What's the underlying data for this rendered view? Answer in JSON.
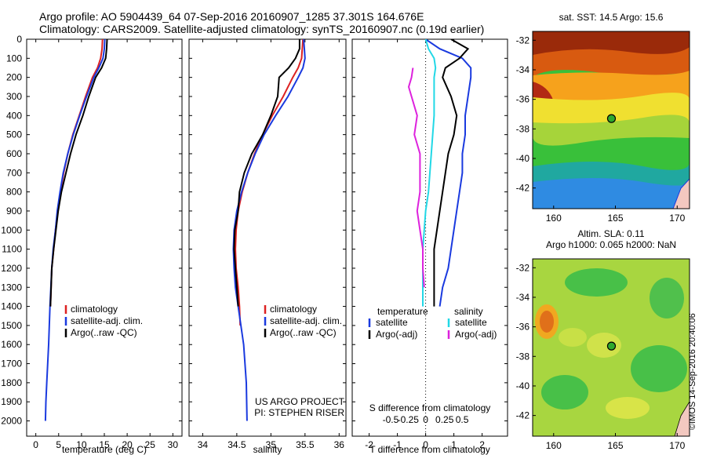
{
  "header": {
    "line1": "Argo profile: AO 5904439_64 07-Sep-2016 20160907_1285 37.301S 164.676E",
    "line2": "Climatology: CARS2009. Satellite-adjusted climatology: synTS_20160907.nc (0.19d earlier)"
  },
  "footer_note": "©IMOS 14-Sep-2016 20:40:06",
  "colors": {
    "climatology": "#dd2222",
    "satellite": "#1a3adf",
    "argo": "#000000",
    "salinity_satellite": "#22d8e6",
    "salinity_argo": "#dd22dd"
  },
  "chart_data": [
    {
      "type": "line",
      "name": "temperature-profile",
      "xlabel": "temperature (deg C)",
      "ylabel": "",
      "xlim": [
        -2,
        32
      ],
      "ylim": [
        0,
        2080
      ],
      "x_ticks": [
        0,
        5,
        10,
        15,
        20,
        25,
        30
      ],
      "y_ticks": [
        0,
        100,
        200,
        300,
        400,
        500,
        600,
        700,
        800,
        900,
        1000,
        1100,
        1200,
        1300,
        1400,
        1500,
        1600,
        1700,
        1800,
        1900,
        2000
      ],
      "legend": [
        "climatology",
        "satellite-adj. clim.",
        "Argo(..raw -QC)"
      ],
      "legend_position": "bottom-center",
      "series": [
        {
          "name": "climatology",
          "color": "#dd2222",
          "x": [
            14.6,
            14.5,
            14.2,
            13.5,
            12.4,
            10.9,
            9.5,
            8.1,
            7.0,
            6.1,
            5.4,
            4.8,
            4.3,
            3.9,
            3.5,
            3.2
          ],
          "y": [
            0,
            50,
            100,
            150,
            200,
            300,
            400,
            500,
            600,
            700,
            800,
            900,
            1000,
            1100,
            1200,
            1400
          ]
        },
        {
          "name": "satellite-adj. clim.",
          "color": "#1a3adf",
          "x": [
            15.1,
            15.0,
            14.7,
            13.8,
            12.7,
            11.1,
            9.6,
            8.2,
            7.0,
            6.0,
            5.3,
            4.7,
            4.3,
            3.8,
            3.5,
            3.1,
            2.8,
            2.6,
            2.4,
            2.2,
            2.1
          ],
          "y": [
            0,
            50,
            100,
            150,
            200,
            300,
            400,
            500,
            600,
            700,
            800,
            900,
            1000,
            1100,
            1200,
            1400,
            1600,
            1700,
            1800,
            1900,
            2000
          ]
        },
        {
          "name": "Argo(..raw -QC)",
          "color": "#000000",
          "x": [
            15.6,
            15.5,
            15.3,
            14.4,
            13.1,
            11.6,
            10.3,
            8.8,
            7.6,
            6.6,
            5.6,
            4.9,
            4.4,
            3.9,
            3.5,
            3.2
          ],
          "y": [
            0,
            50,
            100,
            150,
            200,
            300,
            400,
            500,
            600,
            700,
            800,
            900,
            1000,
            1100,
            1200,
            1400
          ]
        }
      ]
    },
    {
      "type": "line",
      "name": "salinity-profile",
      "xlabel": "salinity",
      "ylabel": "",
      "xlim": [
        33.8,
        36.1
      ],
      "ylim": [
        0,
        2080
      ],
      "x_ticks": [
        34,
        34.5,
        35,
        35.5,
        36
      ],
      "legend": [
        "climatology",
        "satellite-adj. clim.",
        "Argo(..raw -QC)"
      ],
      "legend_position": "bottom-center",
      "annotation": [
        "US ARGO PROJECT",
        "PI: STEPHEN RISER"
      ],
      "series": [
        {
          "name": "climatology",
          "color": "#dd2222",
          "x": [
            35.47,
            35.46,
            35.45,
            35.4,
            35.32,
            35.18,
            35.02,
            34.88,
            34.76,
            34.66,
            34.58,
            34.52,
            34.49,
            34.48,
            34.49,
            34.52,
            34.54,
            34.55
          ],
          "y": [
            0,
            50,
            100,
            150,
            200,
            300,
            400,
            500,
            600,
            700,
            800,
            900,
            1000,
            1100,
            1200,
            1300,
            1400,
            1500
          ]
        },
        {
          "name": "satellite-adj. clim.",
          "color": "#1a3adf",
          "x": [
            35.48,
            35.49,
            35.5,
            35.47,
            35.4,
            35.25,
            35.07,
            34.9,
            34.77,
            34.66,
            34.57,
            34.5,
            34.46,
            34.45,
            34.46,
            34.48,
            34.52,
            34.56,
            34.6,
            34.62,
            34.64,
            34.65
          ],
          "y": [
            0,
            50,
            100,
            150,
            200,
            300,
            400,
            500,
            600,
            700,
            800,
            900,
            1000,
            1100,
            1200,
            1300,
            1400,
            1500,
            1600,
            1700,
            1800,
            2000
          ]
        },
        {
          "name": "Argo(..raw -QC)",
          "color": "#000000",
          "x": [
            35.42,
            35.42,
            35.36,
            35.26,
            35.12,
            35.1,
            35.0,
            34.88,
            34.72,
            34.61,
            34.54,
            34.52,
            34.47,
            34.46,
            34.48,
            34.5,
            34.52
          ],
          "y": [
            0,
            50,
            100,
            150,
            200,
            300,
            400,
            500,
            600,
            700,
            800,
            900,
            1000,
            1100,
            1200,
            1300,
            1400
          ]
        }
      ]
    },
    {
      "type": "line",
      "name": "difference-profile",
      "xlabel": "T difference from climatology",
      "secondary_xlabel": "S difference from climatology",
      "xlim": [
        -2.6,
        2.9
      ],
      "ylim": [
        0,
        2080
      ],
      "x_ticks": [
        -2,
        -1,
        0,
        1,
        2
      ],
      "secondary_x_ticks": [
        "-0.5",
        "-0.25",
        "0",
        "0.25",
        "0.5"
      ],
      "legend_groups": [
        {
          "title": "temperature",
          "items": [
            "satellite",
            "Argo(-adj)"
          ]
        },
        {
          "title": "salinity",
          "items": [
            "satellite",
            "Argo(-adj)"
          ]
        }
      ],
      "legend_position": "bottom-center",
      "series": [
        {
          "name": "satellite",
          "color": "#1a3adf",
          "x": [
            0.0,
            0.5,
            1.3,
            1.6,
            1.6,
            1.5,
            1.4,
            1.4,
            1.3,
            1.3,
            1.2,
            1.1,
            1.0,
            0.9,
            0.8,
            0.6,
            0.5
          ],
          "y": [
            0,
            50,
            100,
            150,
            200,
            300,
            400,
            500,
            600,
            700,
            800,
            900,
            1000,
            1100,
            1200,
            1300,
            1400
          ]
        },
        {
          "name": "Argo(-adj)",
          "color": "#000000",
          "x": [
            0.9,
            1.5,
            1.2,
            0.7,
            0.6,
            0.9,
            1.1,
            1.0,
            0.8,
            0.7,
            0.6,
            0.5,
            0.4,
            0.3,
            0.3,
            0.3
          ],
          "y": [
            0,
            50,
            100,
            150,
            200,
            300,
            400,
            500,
            600,
            700,
            800,
            900,
            1000,
            1100,
            1200,
            1400
          ]
        },
        {
          "name": "satellite",
          "color": "#22d8e6",
          "x": [
            0.0,
            0.1,
            0.3,
            0.35,
            0.3,
            0.3,
            0.3,
            0.25,
            0.2,
            0.15,
            0.1,
            0.0,
            -0.05,
            -0.1,
            -0.1,
            -0.1
          ],
          "y": [
            0,
            50,
            100,
            150,
            200,
            300,
            400,
            500,
            600,
            700,
            800,
            900,
            1000,
            1100,
            1200,
            1400
          ]
        },
        {
          "name": "Argo(-adj)",
          "color": "#dd22dd",
          "x": [
            -0.45,
            -0.5,
            -0.6,
            -0.5,
            -0.3,
            -0.4,
            -0.2,
            -0.2,
            -0.2,
            -0.3,
            -0.2,
            -0.1,
            -0.1,
            -0.05
          ],
          "y": [
            150,
            200,
            250,
            300,
            400,
            500,
            600,
            700,
            800,
            900,
            1000,
            1100,
            1200,
            1300
          ]
        }
      ]
    },
    {
      "type": "heatmap",
      "name": "sst-map",
      "title": "sat. SST: 14.5 Argo: 15.6",
      "xlim": [
        158.3,
        171
      ],
      "ylim": [
        -43.4,
        -31.4
      ],
      "x_ticks": [
        160,
        165,
        170
      ],
      "y_ticks": [
        -32,
        -34,
        -36,
        -38,
        -40,
        -42
      ],
      "marker": {
        "lon": 164.68,
        "lat": -37.3
      }
    },
    {
      "type": "heatmap",
      "name": "sla-map",
      "title": "Altim. SLA: 0.11",
      "subtitle": "Argo h1000: 0.065 h2000: NaN",
      "xlim": [
        158.3,
        171
      ],
      "ylim": [
        -43.4,
        -31.4
      ],
      "x_ticks": [
        160,
        165,
        170
      ],
      "y_ticks": [
        -32,
        -34,
        -36,
        -38,
        -40,
        -42
      ],
      "marker": {
        "lon": 164.68,
        "lat": -37.3
      }
    }
  ]
}
